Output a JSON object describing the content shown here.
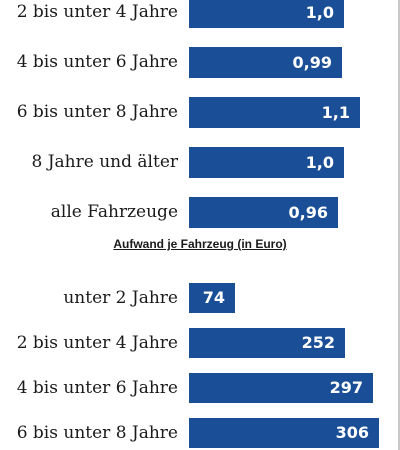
{
  "chart_data": [
    {
      "type": "bar",
      "orientation": "horizontal",
      "title": "",
      "categories": [
        "2 bis unter 4 Jahre",
        "4 bis unter 6 Jahre",
        "6 bis unter 8 Jahre",
        "8 Jahre und älter",
        "alle Fahrzeuge"
      ],
      "values": [
        1.0,
        0.99,
        1.1,
        1.0,
        0.96
      ],
      "value_labels": [
        "1,0",
        "0,99",
        "1,1",
        "1,0",
        "0,96"
      ],
      "xlim": [
        0,
        1.2
      ],
      "grid": false,
      "bar_color": "#1a4e96"
    },
    {
      "type": "bar",
      "orientation": "horizontal",
      "title": "Aufwand je Fahrzeug (in Euro)",
      "categories": [
        "unter 2 Jahre",
        "2 bis unter 4 Jahre",
        "4 bis unter 6 Jahre",
        "6 bis unter 8 Jahre"
      ],
      "values": [
        74,
        252,
        297,
        306
      ],
      "value_labels": [
        "74",
        "252",
        "297",
        "306"
      ],
      "xlim": [
        0,
        330
      ],
      "grid": false,
      "bar_color": "#1a4e96"
    }
  ]
}
